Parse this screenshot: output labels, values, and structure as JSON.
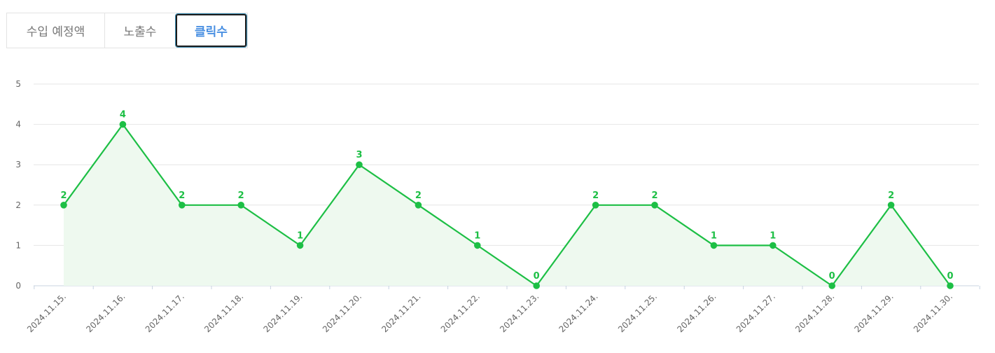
{
  "tabs": [
    {
      "label": "수입 예정액",
      "active": false
    },
    {
      "label": "노출수",
      "active": false
    },
    {
      "label": "클릭수",
      "active": true
    }
  ],
  "colors": {
    "line": "#1dbf45",
    "fill": "#eef9ef",
    "grid": "#e6e6e6",
    "axis": "#c8d3e0",
    "active_tab_text": "#4a90e2"
  },
  "chart_data": {
    "type": "area",
    "categories": [
      "2024.11.15.",
      "2024.11.16.",
      "2024.11.17.",
      "2024.11.18.",
      "2024.11.19.",
      "2024.11.20.",
      "2024.11.21.",
      "2024.11.22.",
      "2024.11.23.",
      "2024.11.24.",
      "2024.11.25.",
      "2024.11.26.",
      "2024.11.27.",
      "2024.11.28.",
      "2024.11.29.",
      "2024.11.30."
    ],
    "values": [
      2,
      4,
      2,
      2,
      1,
      3,
      2,
      1,
      0,
      2,
      2,
      1,
      1,
      0,
      2,
      0
    ],
    "ylim": [
      0,
      5
    ],
    "yticks": [
      0,
      1,
      2,
      3,
      4,
      5
    ],
    "grid": true,
    "data_labels": true
  }
}
